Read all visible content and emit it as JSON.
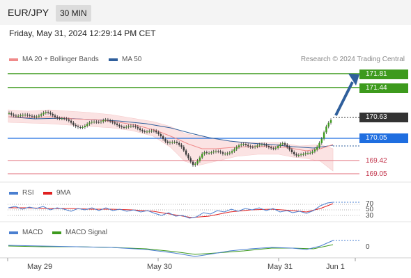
{
  "header": {
    "pair": "EUR/JPY",
    "timeframe": "30 MIN"
  },
  "datetime": "Friday, May 31, 2024 12:29:14 PM CET",
  "legend": {
    "ma20": "MA 20 + Bollinger Bands",
    "ma50": "MA 50",
    "copyright": "Research © 2024 Trading Central"
  },
  "levels": {
    "r2": "171.81",
    "r1": "171.44",
    "last": "170.63",
    "pivot": "170.05",
    "s1": "169.42",
    "s2": "169.05"
  },
  "rsi": {
    "label": "RSI",
    "ma_label": "9MA",
    "levels": [
      "70",
      "50",
      "30"
    ]
  },
  "macd": {
    "label": "MACD",
    "signal_label": "MACD Signal",
    "zero": "0"
  },
  "dates": [
    "May 29",
    "May 30",
    "May 31",
    "Jun 1"
  ],
  "colors": {
    "green_level": "#3d9a1d",
    "blue_level": "#1f6ee0",
    "red_level": "#e88b95",
    "ma20": "#f08a8a",
    "ma50": "#2f5f9c",
    "bollinger_fill": "#fbe3e3",
    "arrow": "#2f5f9c",
    "rsi_line": "#4a7fd0",
    "rsi_ma": "#e02020",
    "macd_line": "#4a7fd0",
    "macd_signal": "#3d9a1d"
  }
}
